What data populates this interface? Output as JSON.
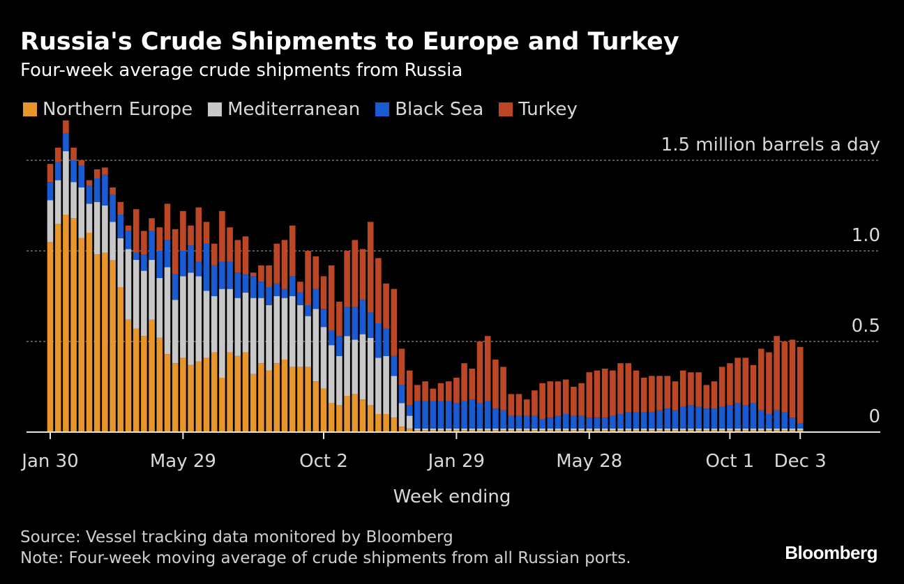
{
  "header": {
    "title": "Russia's Crude Shipments to Europe and Turkey",
    "subtitle": "Four-week average crude shipments from Russia"
  },
  "footer": {
    "source": "Source: Vessel tracking data monitored by Bloomberg",
    "note": "Note: Four-week moving average of crude shipments from all Russian ports.",
    "brand": "Bloomberg"
  },
  "chart_data": {
    "type": "bar",
    "stacked": true,
    "xlabel": "Week ending",
    "ylabel": "",
    "unit_label": "1.5 million barrels a day",
    "ylim": [
      0,
      1.5
    ],
    "yticks": [
      {
        "value": 0,
        "label": "0"
      },
      {
        "value": 0.5,
        "label": "0.5"
      },
      {
        "value": 1.0,
        "label": "1.0"
      },
      {
        "value": 1.5,
        "label": "1.5 million barrels a day"
      }
    ],
    "xticks": [
      {
        "index": 0,
        "label": "Jan 30"
      },
      {
        "index": 17,
        "label": "May 29"
      },
      {
        "index": 35,
        "label": "Oct 2"
      },
      {
        "index": 52,
        "label": "Jan 29"
      },
      {
        "index": 69,
        "label": "May 28"
      },
      {
        "index": 87,
        "label": "Oct 1"
      },
      {
        "index": 96,
        "label": "Dec 3"
      }
    ],
    "grid": true,
    "legend_position": "top-left",
    "series": [
      {
        "name": "Northern Europe",
        "color": "#e8952b",
        "values": [
          1.05,
          1.15,
          1.2,
          1.18,
          1.07,
          1.1,
          0.98,
          0.99,
          0.95,
          0.8,
          0.62,
          0.57,
          0.53,
          0.62,
          0.52,
          0.43,
          0.38,
          0.41,
          0.37,
          0.39,
          0.41,
          0.44,
          0.3,
          0.44,
          0.42,
          0.44,
          0.32,
          0.38,
          0.34,
          0.38,
          0.4,
          0.36,
          0.36,
          0.36,
          0.28,
          0.24,
          0.16,
          0.15,
          0.2,
          0.21,
          0.18,
          0.15,
          0.1,
          0.1,
          0.08,
          0.03,
          0.02,
          0.01,
          0.01,
          0.01,
          0.01,
          0.01,
          0.01,
          0.01,
          0.01,
          0.01,
          0.01,
          0.01,
          0.01,
          0.01,
          0.01,
          0.01,
          0.01,
          0.01,
          0.01,
          0.01,
          0.01,
          0.01,
          0.01,
          0.01,
          0.01,
          0.01,
          0.01,
          0.01,
          0.01,
          0.01,
          0.01,
          0.01,
          0.01,
          0.01,
          0.01,
          0.01,
          0.01,
          0.01,
          0.01,
          0.01,
          0.01,
          0.01,
          0.01,
          0.01,
          0.01,
          0.01,
          0.01,
          0.01,
          0.01,
          0.01,
          0.01
        ]
      },
      {
        "name": "Mediterranean",
        "color": "#c8c8c8",
        "values": [
          0.23,
          0.24,
          0.35,
          0.2,
          0.28,
          0.16,
          0.29,
          0.26,
          0.21,
          0.27,
          0.39,
          0.38,
          0.36,
          0.33,
          0.33,
          0.48,
          0.35,
          0.45,
          0.51,
          0.47,
          0.37,
          0.31,
          0.49,
          0.35,
          0.32,
          0.33,
          0.42,
          0.36,
          0.36,
          0.37,
          0.34,
          0.39,
          0.34,
          0.28,
          0.4,
          0.34,
          0.32,
          0.27,
          0.33,
          0.3,
          0.36,
          0.37,
          0.31,
          0.32,
          0.23,
          0.13,
          0.07,
          0.01,
          0.01,
          0.01,
          0.01,
          0.01,
          0.01,
          0.01,
          0.01,
          0.01,
          0.01,
          0.01,
          0.01,
          0.01,
          0.01,
          0.01,
          0.01,
          0.01,
          0.01,
          0.01,
          0.01,
          0.01,
          0.01,
          0.01,
          0.01,
          0.01,
          0.01,
          0.01,
          0.01,
          0.01,
          0.01,
          0.01,
          0.01,
          0.01,
          0.01,
          0.01,
          0.01,
          0.01,
          0.01,
          0.01,
          0.01,
          0.01,
          0.01,
          0.01,
          0.01,
          0.01,
          0.01,
          0.01,
          0.01,
          0.01,
          0.01
        ]
      },
      {
        "name": "Black Sea",
        "color": "#1a5bd1",
        "values": [
          0.1,
          0.1,
          0.1,
          0.12,
          0.12,
          0.1,
          0.13,
          0.17,
          0.15,
          0.13,
          0.1,
          0.04,
          0.09,
          0.16,
          0.15,
          0.15,
          0.14,
          0.14,
          0.15,
          0.08,
          0.26,
          0.17,
          0.15,
          0.15,
          0.14,
          0.1,
          0.12,
          0.09,
          0.1,
          0.07,
          0.05,
          0.11,
          0.07,
          0.06,
          0.11,
          0.1,
          0.08,
          0.11,
          0.16,
          0.18,
          0.19,
          0.14,
          0.19,
          0.15,
          0.11,
          0.1,
          0.06,
          0.15,
          0.15,
          0.15,
          0.15,
          0.15,
          0.14,
          0.15,
          0.16,
          0.14,
          0.15,
          0.11,
          0.1,
          0.07,
          0.07,
          0.07,
          0.07,
          0.05,
          0.06,
          0.07,
          0.08,
          0.07,
          0.07,
          0.06,
          0.06,
          0.06,
          0.07,
          0.08,
          0.09,
          0.09,
          0.09,
          0.09,
          0.1,
          0.11,
          0.1,
          0.12,
          0.13,
          0.12,
          0.11,
          0.11,
          0.12,
          0.13,
          0.14,
          0.13,
          0.14,
          0.1,
          0.08,
          0.1,
          0.09,
          0.06,
          0.03
        ]
      },
      {
        "name": "Turkey",
        "color": "#bc4726",
        "values": [
          0.1,
          0.08,
          0.07,
          0.07,
          0.03,
          0.03,
          0.05,
          0.04,
          0.04,
          0.07,
          0.03,
          0.24,
          0.13,
          0.07,
          0.13,
          0.2,
          0.25,
          0.22,
          0.11,
          0.3,
          0.12,
          0.12,
          0.28,
          0.19,
          0.18,
          0.21,
          0.02,
          0.09,
          0.12,
          0.22,
          0.27,
          0.28,
          0.06,
          0.3,
          0.18,
          0.18,
          0.36,
          0.19,
          0.31,
          0.37,
          0.28,
          0.5,
          0.36,
          0.25,
          0.37,
          0.2,
          0.19,
          0.09,
          0.11,
          0.07,
          0.1,
          0.11,
          0.14,
          0.21,
          0.17,
          0.34,
          0.36,
          0.27,
          0.24,
          0.12,
          0.12,
          0.09,
          0.14,
          0.2,
          0.2,
          0.19,
          0.19,
          0.16,
          0.18,
          0.25,
          0.26,
          0.27,
          0.25,
          0.28,
          0.27,
          0.23,
          0.19,
          0.2,
          0.19,
          0.18,
          0.16,
          0.2,
          0.18,
          0.19,
          0.13,
          0.15,
          0.22,
          0.23,
          0.25,
          0.26,
          0.21,
          0.34,
          0.34,
          0.41,
          0.39,
          0.43,
          0.42
        ]
      }
    ]
  }
}
